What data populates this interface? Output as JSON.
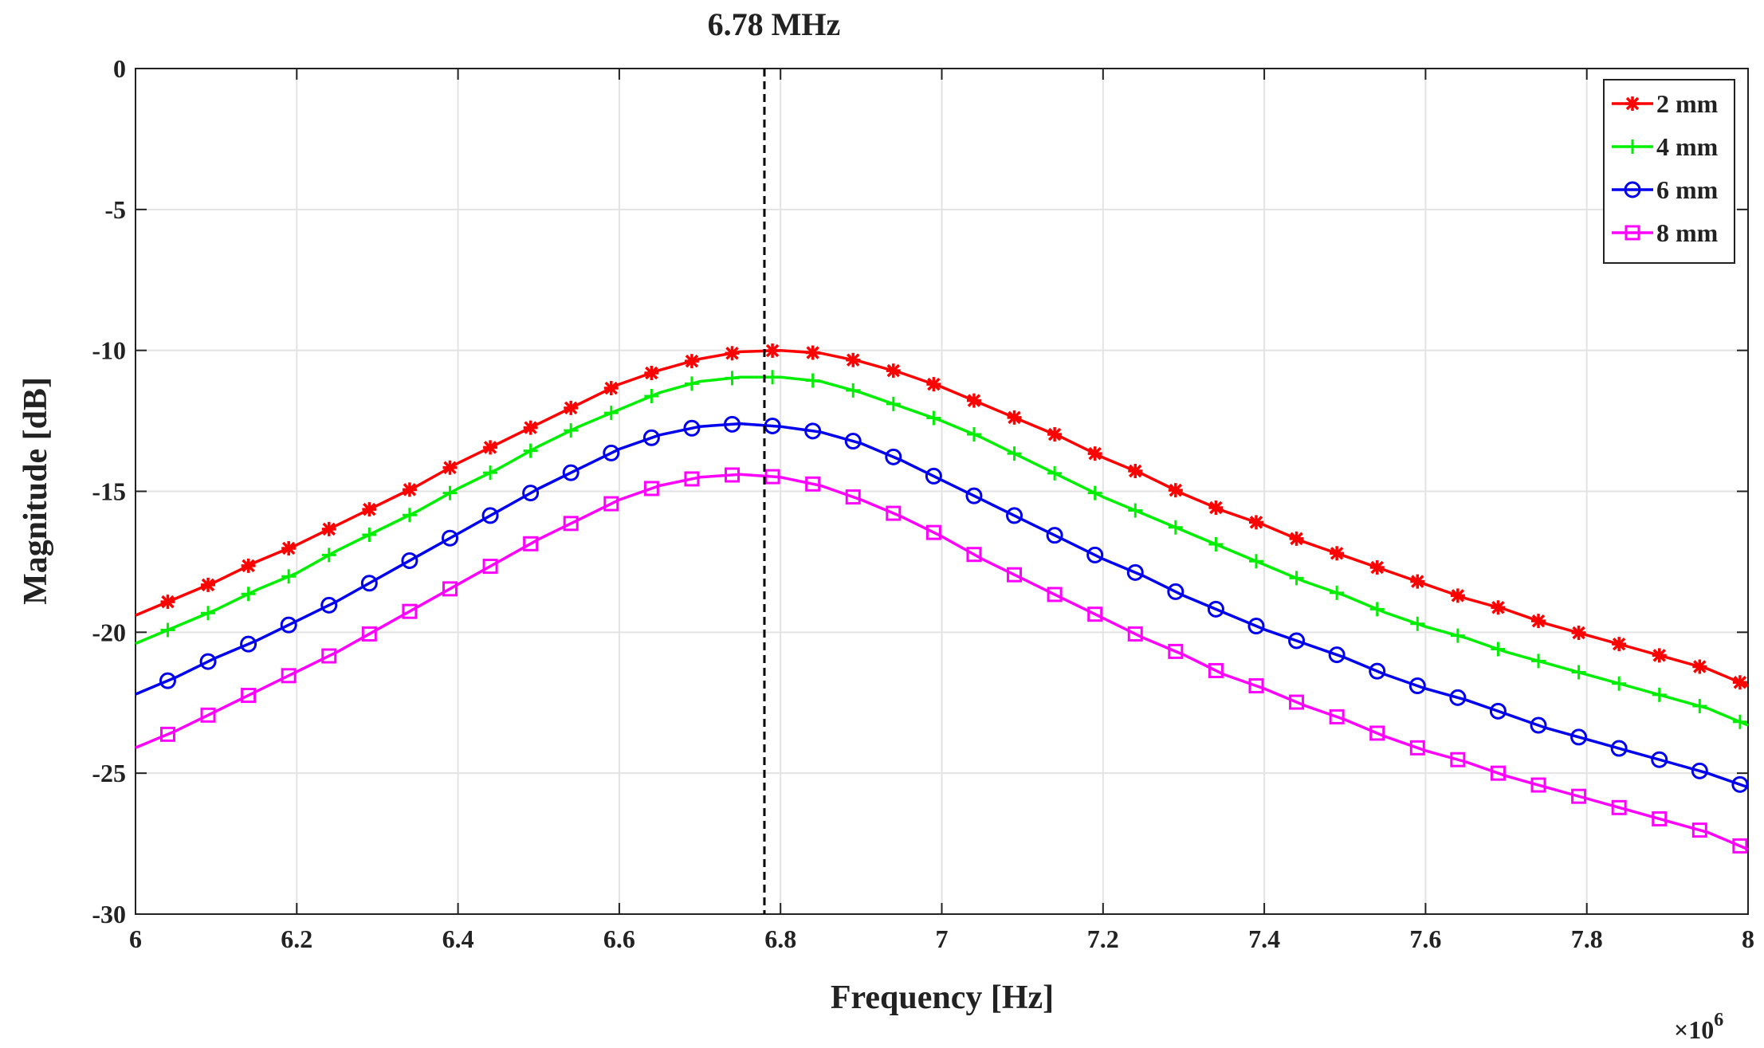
{
  "chart_data": {
    "type": "line",
    "title": "",
    "xlabel": "Frequency [Hz]",
    "ylabel": "Magnitude [dB]",
    "x_scale_label": "×10",
    "x_scale_exponent": "6",
    "xlim": [
      6.0,
      8.0
    ],
    "ylim": [
      -30,
      0
    ],
    "x_ticks": [
      6.0,
      6.2,
      6.4,
      6.6,
      6.8,
      7.0,
      7.2,
      7.4,
      7.6,
      7.8,
      8.0
    ],
    "x_tick_labels": [
      "6",
      "6.2",
      "6.4",
      "6.6",
      "6.8",
      "7",
      "7.2",
      "7.4",
      "7.6",
      "7.8",
      "8"
    ],
    "y_ticks": [
      0,
      -5,
      -10,
      -15,
      -20,
      -25,
      -30
    ],
    "y_tick_labels": [
      "0",
      "-5",
      "-10",
      "-15",
      "-20",
      "-25",
      "-30"
    ],
    "grid": true,
    "legend_position": "top-right",
    "annotation": {
      "text": "6.78 MHz",
      "x": 6.78,
      "style": "dashed-vertical-line"
    },
    "x": [
      6.0,
      6.05,
      6.1,
      6.15,
      6.2,
      6.25,
      6.3,
      6.35,
      6.4,
      6.45,
      6.5,
      6.55,
      6.6,
      6.65,
      6.7,
      6.75,
      6.8,
      6.85,
      6.9,
      6.95,
      7.0,
      7.05,
      7.1,
      7.15,
      7.2,
      7.25,
      7.3,
      7.35,
      7.4,
      7.45,
      7.5,
      7.55,
      7.6,
      7.65,
      7.7,
      7.75,
      7.8,
      7.85,
      7.9,
      7.95,
      8.0
    ],
    "marker_x": [
      6.04,
      6.09,
      6.14,
      6.19,
      6.24,
      6.29,
      6.34,
      6.39,
      6.44,
      6.49,
      6.54,
      6.59,
      6.64,
      6.69,
      6.74,
      6.79,
      6.84,
      6.89,
      6.94,
      6.99,
      7.04,
      7.09,
      7.14,
      7.19,
      7.24,
      7.29,
      7.34,
      7.39,
      7.44,
      7.49,
      7.54,
      7.59,
      7.64,
      7.69,
      7.74,
      7.79,
      7.84,
      7.89,
      7.94,
      7.99
    ],
    "series": [
      {
        "name": "2 mm",
        "color": "#ff0000",
        "marker": "asterisk",
        "values": [
          -19.4,
          -18.8,
          -18.2,
          -17.5,
          -16.9,
          -16.2,
          -15.5,
          -14.8,
          -14.0,
          -13.3,
          -12.6,
          -11.9,
          -11.2,
          -10.7,
          -10.3,
          -10.05,
          -10.0,
          -10.1,
          -10.4,
          -10.8,
          -11.3,
          -11.9,
          -12.5,
          -13.1,
          -13.8,
          -14.4,
          -15.1,
          -15.7,
          -16.2,
          -16.8,
          -17.3,
          -17.8,
          -18.3,
          -18.8,
          -19.2,
          -19.7,
          -20.1,
          -20.5,
          -20.9,
          -21.3,
          -21.9
        ]
      },
      {
        "name": "4 mm",
        "color": "#00ee00",
        "marker": "plus",
        "values": [
          -20.4,
          -19.8,
          -19.2,
          -18.5,
          -17.9,
          -17.1,
          -16.4,
          -15.7,
          -14.9,
          -14.2,
          -13.4,
          -12.7,
          -12.1,
          -11.5,
          -11.1,
          -10.95,
          -10.95,
          -11.1,
          -11.5,
          -12.0,
          -12.5,
          -13.1,
          -13.8,
          -14.5,
          -15.2,
          -15.8,
          -16.4,
          -17.0,
          -17.6,
          -18.2,
          -18.7,
          -19.3,
          -19.8,
          -20.2,
          -20.7,
          -21.1,
          -21.5,
          -21.9,
          -22.3,
          -22.7,
          -23.3
        ]
      },
      {
        "name": "6 mm",
        "color": "#0000ee",
        "marker": "circle",
        "values": [
          -22.2,
          -21.6,
          -20.9,
          -20.3,
          -19.6,
          -18.9,
          -18.1,
          -17.3,
          -16.5,
          -15.7,
          -14.9,
          -14.2,
          -13.5,
          -13.0,
          -12.7,
          -12.6,
          -12.7,
          -12.9,
          -13.3,
          -13.9,
          -14.6,
          -15.3,
          -16.0,
          -16.7,
          -17.4,
          -18.0,
          -18.7,
          -19.3,
          -19.9,
          -20.4,
          -20.9,
          -21.5,
          -22.0,
          -22.4,
          -22.9,
          -23.4,
          -23.8,
          -24.2,
          -24.6,
          -25.0,
          -25.5
        ]
      },
      {
        "name": "8 mm",
        "color": "#ff00ff",
        "marker": "square",
        "values": [
          -24.1,
          -23.5,
          -22.8,
          -22.1,
          -21.4,
          -20.7,
          -19.9,
          -19.1,
          -18.3,
          -17.5,
          -16.7,
          -16.0,
          -15.3,
          -14.8,
          -14.5,
          -14.4,
          -14.5,
          -14.8,
          -15.3,
          -15.9,
          -16.6,
          -17.4,
          -18.1,
          -18.8,
          -19.5,
          -20.2,
          -20.8,
          -21.5,
          -22.0,
          -22.6,
          -23.1,
          -23.7,
          -24.2,
          -24.6,
          -25.1,
          -25.5,
          -25.9,
          -26.3,
          -26.7,
          -27.1,
          -27.7
        ]
      }
    ]
  }
}
